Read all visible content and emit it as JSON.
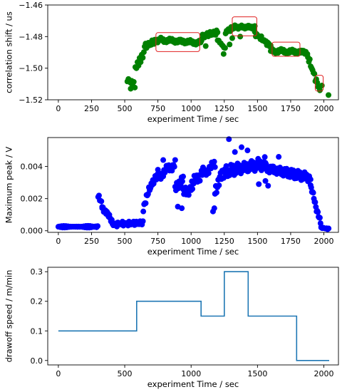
{
  "chart_data": [
    {
      "type": "scatter",
      "xlabel": "experiment Time / sec",
      "ylabel": "correlation shift / us",
      "xlim": [
        -80,
        2110
      ],
      "ylim": [
        -1.52,
        -1.46
      ],
      "xticks": [
        0,
        250,
        500,
        750,
        1000,
        1250,
        1500,
        1750,
        2000
      ],
      "yticks": [
        -1.52,
        -1.5,
        -1.48,
        -1.46
      ],
      "ytick_labels": [
        "−1.52",
        "−1.50",
        "−1.48",
        "−1.46"
      ],
      "marker_color": "#008000",
      "segments": [
        {
          "x0": 520,
          "x1": 580,
          "step": 8,
          "y0": -1.507,
          "y1": -1.511,
          "amp": 0.003
        },
        {
          "x0": 580,
          "x1": 650,
          "step": 8,
          "y0": -1.5,
          "y1": -1.49,
          "amp": 0.002
        },
        {
          "x0": 650,
          "x1": 760,
          "step": 7,
          "y0": -1.486,
          "y1": -1.482,
          "amp": 0.002
        },
        {
          "x0": 760,
          "x1": 1080,
          "step": 6,
          "y0": -1.482,
          "y1": -1.484,
          "amp": 0.0015
        },
        {
          "x0": 1080,
          "x1": 1200,
          "step": 7,
          "y0": -1.48,
          "y1": -1.477,
          "amp": 0.0018
        },
        {
          "x0": 1200,
          "x1": 1260,
          "step": 8,
          "y0": -1.482,
          "y1": -1.488,
          "amp": 0.002
        },
        {
          "x0": 1260,
          "x1": 1330,
          "step": 7,
          "y0": -1.477,
          "y1": -1.474,
          "amp": 0.0015
        },
        {
          "x0": 1330,
          "x1": 1480,
          "step": 5,
          "y0": -1.474,
          "y1": -1.474,
          "amp": 0.0012
        },
        {
          "x0": 1480,
          "x1": 1600,
          "step": 7,
          "y0": -1.478,
          "y1": -1.486,
          "amp": 0.0015
        },
        {
          "x0": 1600,
          "x1": 1880,
          "step": 6,
          "y0": -1.489,
          "y1": -1.49,
          "amp": 0.0015
        },
        {
          "x0": 1880,
          "x1": 1960,
          "step": 7,
          "y0": -1.493,
          "y1": -1.512,
          "amp": 0.002
        }
      ],
      "extra_points": [
        {
          "x": 545,
          "y": -1.513
        },
        {
          "x": 2035,
          "y": -1.517
        },
        {
          "x": 1970,
          "y": -1.514
        },
        {
          "x": 1985,
          "y": -1.511
        },
        {
          "x": 1310,
          "y": -1.481
        },
        {
          "x": 1370,
          "y": -1.48
        },
        {
          "x": 1290,
          "y": -1.485
        },
        {
          "x": 1110,
          "y": -1.486
        },
        {
          "x": 1245,
          "y": -1.491
        }
      ],
      "annotation_boxes": [
        {
          "x0": 735,
          "x1": 1065,
          "y0": -1.4895,
          "y1": -1.4775
        },
        {
          "x0": 1310,
          "x1": 1495,
          "y0": -1.4795,
          "y1": -1.4675
        },
        {
          "x0": 1610,
          "x1": 1820,
          "y0": -1.4925,
          "y1": -1.4835
        },
        {
          "x0": 1935,
          "x1": 1995,
          "y0": -1.5145,
          "y1": -1.5045
        }
      ],
      "annotation_color": "#e02020"
    },
    {
      "type": "scatter",
      "xlabel": "experiment Time / sec",
      "ylabel": "Maximum peak / V",
      "xlim": [
        -80,
        2110
      ],
      "ylim": [
        -0.0001,
        0.0058
      ],
      "xticks": [
        0,
        250,
        500,
        750,
        1000,
        1250,
        1500,
        1750,
        2000
      ],
      "yticks": [
        0.0,
        0.002,
        0.004
      ],
      "ytick_labels": [
        "0.000",
        "0.002",
        "0.004"
      ],
      "marker_color": "#0000ff",
      "segments": [
        {
          "x0": 0,
          "x1": 300,
          "step": 8,
          "y0": 0.00025,
          "y1": 0.00025,
          "amp": 6e-05
        },
        {
          "x0": 300,
          "x1": 330,
          "step": 6,
          "y0": 0.0021,
          "y1": 0.0016,
          "amp": 0.0002
        },
        {
          "x0": 330,
          "x1": 420,
          "step": 6,
          "y0": 0.0015,
          "y1": 0.0004,
          "amp": 0.0002
        },
        {
          "x0": 420,
          "x1": 640,
          "step": 7,
          "y0": 0.0004,
          "y1": 0.0005,
          "amp": 0.00015
        },
        {
          "x0": 640,
          "x1": 700,
          "step": 6,
          "y0": 0.0015,
          "y1": 0.0028,
          "amp": 0.0003
        },
        {
          "x0": 700,
          "x1": 880,
          "step": 6,
          "y0": 0.003,
          "y1": 0.0042,
          "amp": 0.0003
        },
        {
          "x0": 880,
          "x1": 940,
          "step": 6,
          "y0": 0.0025,
          "y1": 0.0034,
          "amp": 0.0004
        },
        {
          "x0": 940,
          "x1": 1090,
          "step": 6,
          "y0": 0.0022,
          "y1": 0.0037,
          "amp": 0.0004
        },
        {
          "x0": 1090,
          "x1": 1180,
          "step": 6,
          "y0": 0.0036,
          "y1": 0.0041,
          "amp": 0.0003
        },
        {
          "x0": 1180,
          "x1": 1260,
          "step": 6,
          "y0": 0.0026,
          "y1": 0.0038,
          "amp": 0.0005
        },
        {
          "x0": 1260,
          "x1": 1560,
          "step": 5,
          "y0": 0.0037,
          "y1": 0.0042,
          "amp": 0.0004
        },
        {
          "x0": 1560,
          "x1": 1900,
          "step": 5,
          "y0": 0.0039,
          "y1": 0.0033,
          "amp": 0.0003
        },
        {
          "x0": 1900,
          "x1": 1980,
          "step": 5,
          "y0": 0.0028,
          "y1": 0.0003,
          "amp": 0.0002
        },
        {
          "x0": 1980,
          "x1": 2040,
          "step": 8,
          "y0": 0.0002,
          "y1": 0.0001,
          "amp": 5e-05
        }
      ],
      "extra_points": [
        {
          "x": 1285,
          "y": 0.0057
        },
        {
          "x": 1380,
          "y": 0.0052
        },
        {
          "x": 1425,
          "y": 0.005
        },
        {
          "x": 1330,
          "y": 0.0049
        },
        {
          "x": 900,
          "y": 0.0015
        },
        {
          "x": 930,
          "y": 0.0014
        },
        {
          "x": 1175,
          "y": 0.0014
        },
        {
          "x": 1165,
          "y": 0.0012
        },
        {
          "x": 1010,
          "y": 0.0026
        },
        {
          "x": 1060,
          "y": 0.0031
        },
        {
          "x": 1660,
          "y": 0.0046
        },
        {
          "x": 1560,
          "y": 0.0031
        },
        {
          "x": 1510,
          "y": 0.0029
        },
        {
          "x": 1580,
          "y": 0.0028
        },
        {
          "x": 750,
          "y": 0.0038
        },
        {
          "x": 790,
          "y": 0.0044
        }
      ]
    },
    {
      "type": "line",
      "xlabel": "experiment Time / sec",
      "ylabel": "drawoff speed / m/min",
      "xlim": [
        -80,
        2110
      ],
      "ylim": [
        -0.015,
        0.315
      ],
      "xticks": [
        0,
        500,
        1000,
        1500,
        2000
      ],
      "yticks": [
        0.0,
        0.1,
        0.2,
        0.3
      ],
      "ytick_labels": [
        "0.0",
        "0.1",
        "0.2",
        "0.3"
      ],
      "line_color": "#1f77b4",
      "x": [
        0,
        590,
        590,
        1075,
        1075,
        1250,
        1250,
        1430,
        1430,
        1795,
        1795,
        2040
      ],
      "y": [
        0.1,
        0.1,
        0.2,
        0.2,
        0.15,
        0.15,
        0.3,
        0.3,
        0.15,
        0.15,
        0.0,
        0.0
      ]
    }
  ]
}
